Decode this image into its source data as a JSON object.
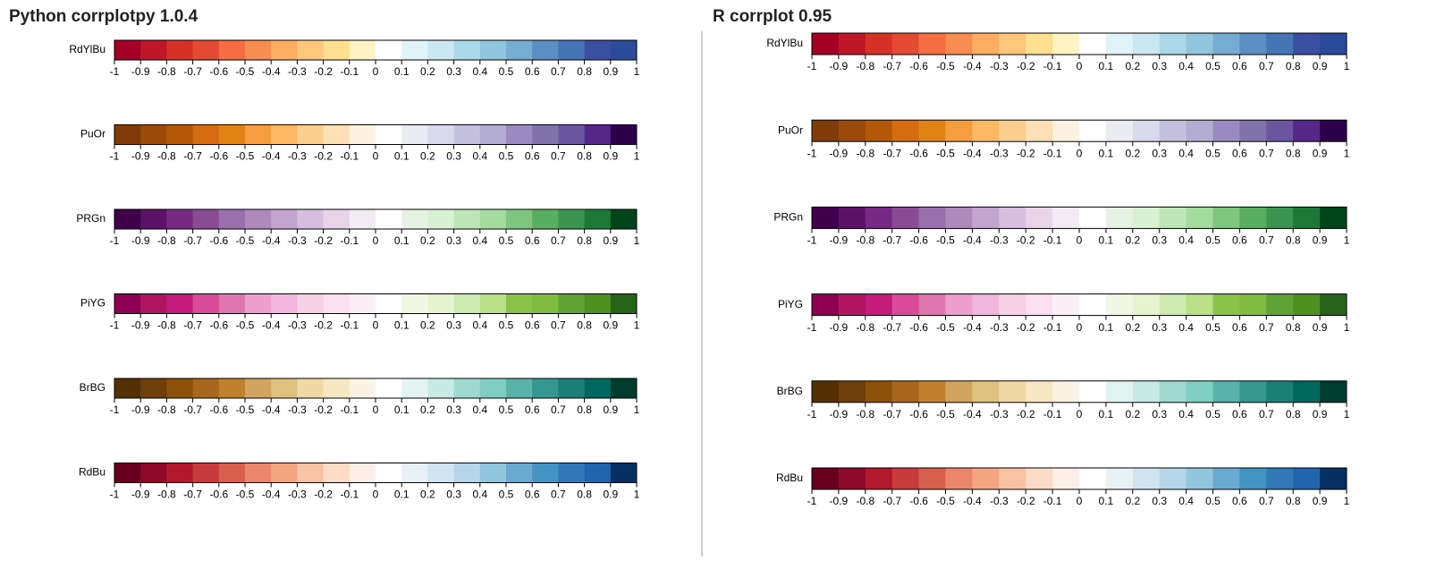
{
  "palettes": [
    {
      "colors": [
        "#a50026",
        "#c0162a",
        "#d73027",
        "#e34a33",
        "#f46d43",
        "#f88d52",
        "#fdae61",
        "#fec77b",
        "#fee090",
        "#fff3c4",
        "#ffffff",
        "#e0f3f8",
        "#cbe8f0",
        "#abd9e9",
        "#92c5de",
        "#74add1",
        "#5b8fc4",
        "#4575b4",
        "#3a4fa0",
        "#2c4a9a"
      ]
    },
    {
      "colors": [
        "#7f3b08",
        "#9b4a0b",
        "#b35806",
        "#d46c12",
        "#e08214",
        "#f59d3f",
        "#fdb863",
        "#fdcf8e",
        "#fee0b6",
        "#fdf1e0",
        "#ffffff",
        "#ebebf2",
        "#d8daeb",
        "#c5c0dd",
        "#b2abd2",
        "#9a8ac0",
        "#8073ac",
        "#6a55a0",
        "#542788",
        "#2d004b"
      ]
    },
    {
      "colors": [
        "#40004b",
        "#5a1366",
        "#762a83",
        "#8a4b95",
        "#9970ab",
        "#ad8abb",
        "#c2a5cf",
        "#d4c0de",
        "#e7d4e8",
        "#f3ebf3",
        "#ffffff",
        "#e6f3e2",
        "#d9f0d3",
        "#bde5b7",
        "#a6dba0",
        "#80c57f",
        "#5aae61",
        "#3b9450",
        "#1b7837",
        "#00441b"
      ]
    },
    {
      "colors": [
        "#8e0152",
        "#b0165f",
        "#c51b7d",
        "#d84b98",
        "#de77ae",
        "#eb9fc9",
        "#f1b6da",
        "#f7d1e6",
        "#fde0ef",
        "#fbf0f5",
        "#ffffff",
        "#f1f7e5",
        "#e6f5d0",
        "#cdebae",
        "#b8e186",
        "#8bc34a",
        "#7fbc41",
        "#5fa335",
        "#4d9221",
        "#276419"
      ]
    },
    {
      "colors": [
        "#543005",
        "#6e3e0b",
        "#8c510a",
        "#a8671e",
        "#bf812d",
        "#d1a45f",
        "#dfc27d",
        "#efd9a6",
        "#f6e8c3",
        "#fbf4e6",
        "#ffffff",
        "#e3f3f1",
        "#c7eae5",
        "#a0d9cf",
        "#80cdc1",
        "#5bb2a8",
        "#35978f",
        "#1b7f77",
        "#01665e",
        "#003c30"
      ]
    },
    {
      "colors": [
        "#67001f",
        "#8e0a2a",
        "#b2182b",
        "#c73b3d",
        "#d6604d",
        "#e9866c",
        "#f4a582",
        "#f8c3a5",
        "#fddbc7",
        "#fdefe7",
        "#ffffff",
        "#e8f1f6",
        "#d1e5f0",
        "#b4d6e8",
        "#92c5de",
        "#6aaad0",
        "#4393c3",
        "#3079b6",
        "#2166ac",
        "#053061"
      ]
    }
  ],
  "panels": [
    {
      "title": "Python corrplotpy 1.0.4",
      "bars": [
        {
          "name": "RdYlBu"
        },
        {
          "name": "PuOr"
        },
        {
          "name": "PRGn"
        },
        {
          "name": "PiYG"
        },
        {
          "name": "BrBG"
        },
        {
          "name": "RdBu"
        }
      ],
      "ticks": [
        -1,
        -0.9,
        -0.8,
        -0.7,
        -0.6,
        -0.5,
        -0.4,
        -0.3,
        -0.2,
        -0.1,
        0,
        0.1,
        0.2,
        0.3,
        0.4,
        0.5,
        0.6,
        0.7,
        0.8,
        0.9,
        1
      ]
    },
    {
      "title": "R corrplot 0.95",
      "bars": [
        {
          "name": "RdYlBu"
        },
        {
          "name": "PuOr"
        },
        {
          "name": "PRGn"
        },
        {
          "name": "PiYG"
        },
        {
          "name": "BrBG"
        },
        {
          "name": "RdBu"
        }
      ],
      "ticks": [
        -1,
        -0.9,
        -0.8,
        -0.7,
        -0.6,
        -0.5,
        -0.4,
        -0.3,
        -0.2,
        -0.1,
        0,
        0.1,
        0.2,
        0.3,
        0.4,
        0.5,
        0.6,
        0.7,
        0.8,
        0.9,
        1
      ]
    }
  ]
}
